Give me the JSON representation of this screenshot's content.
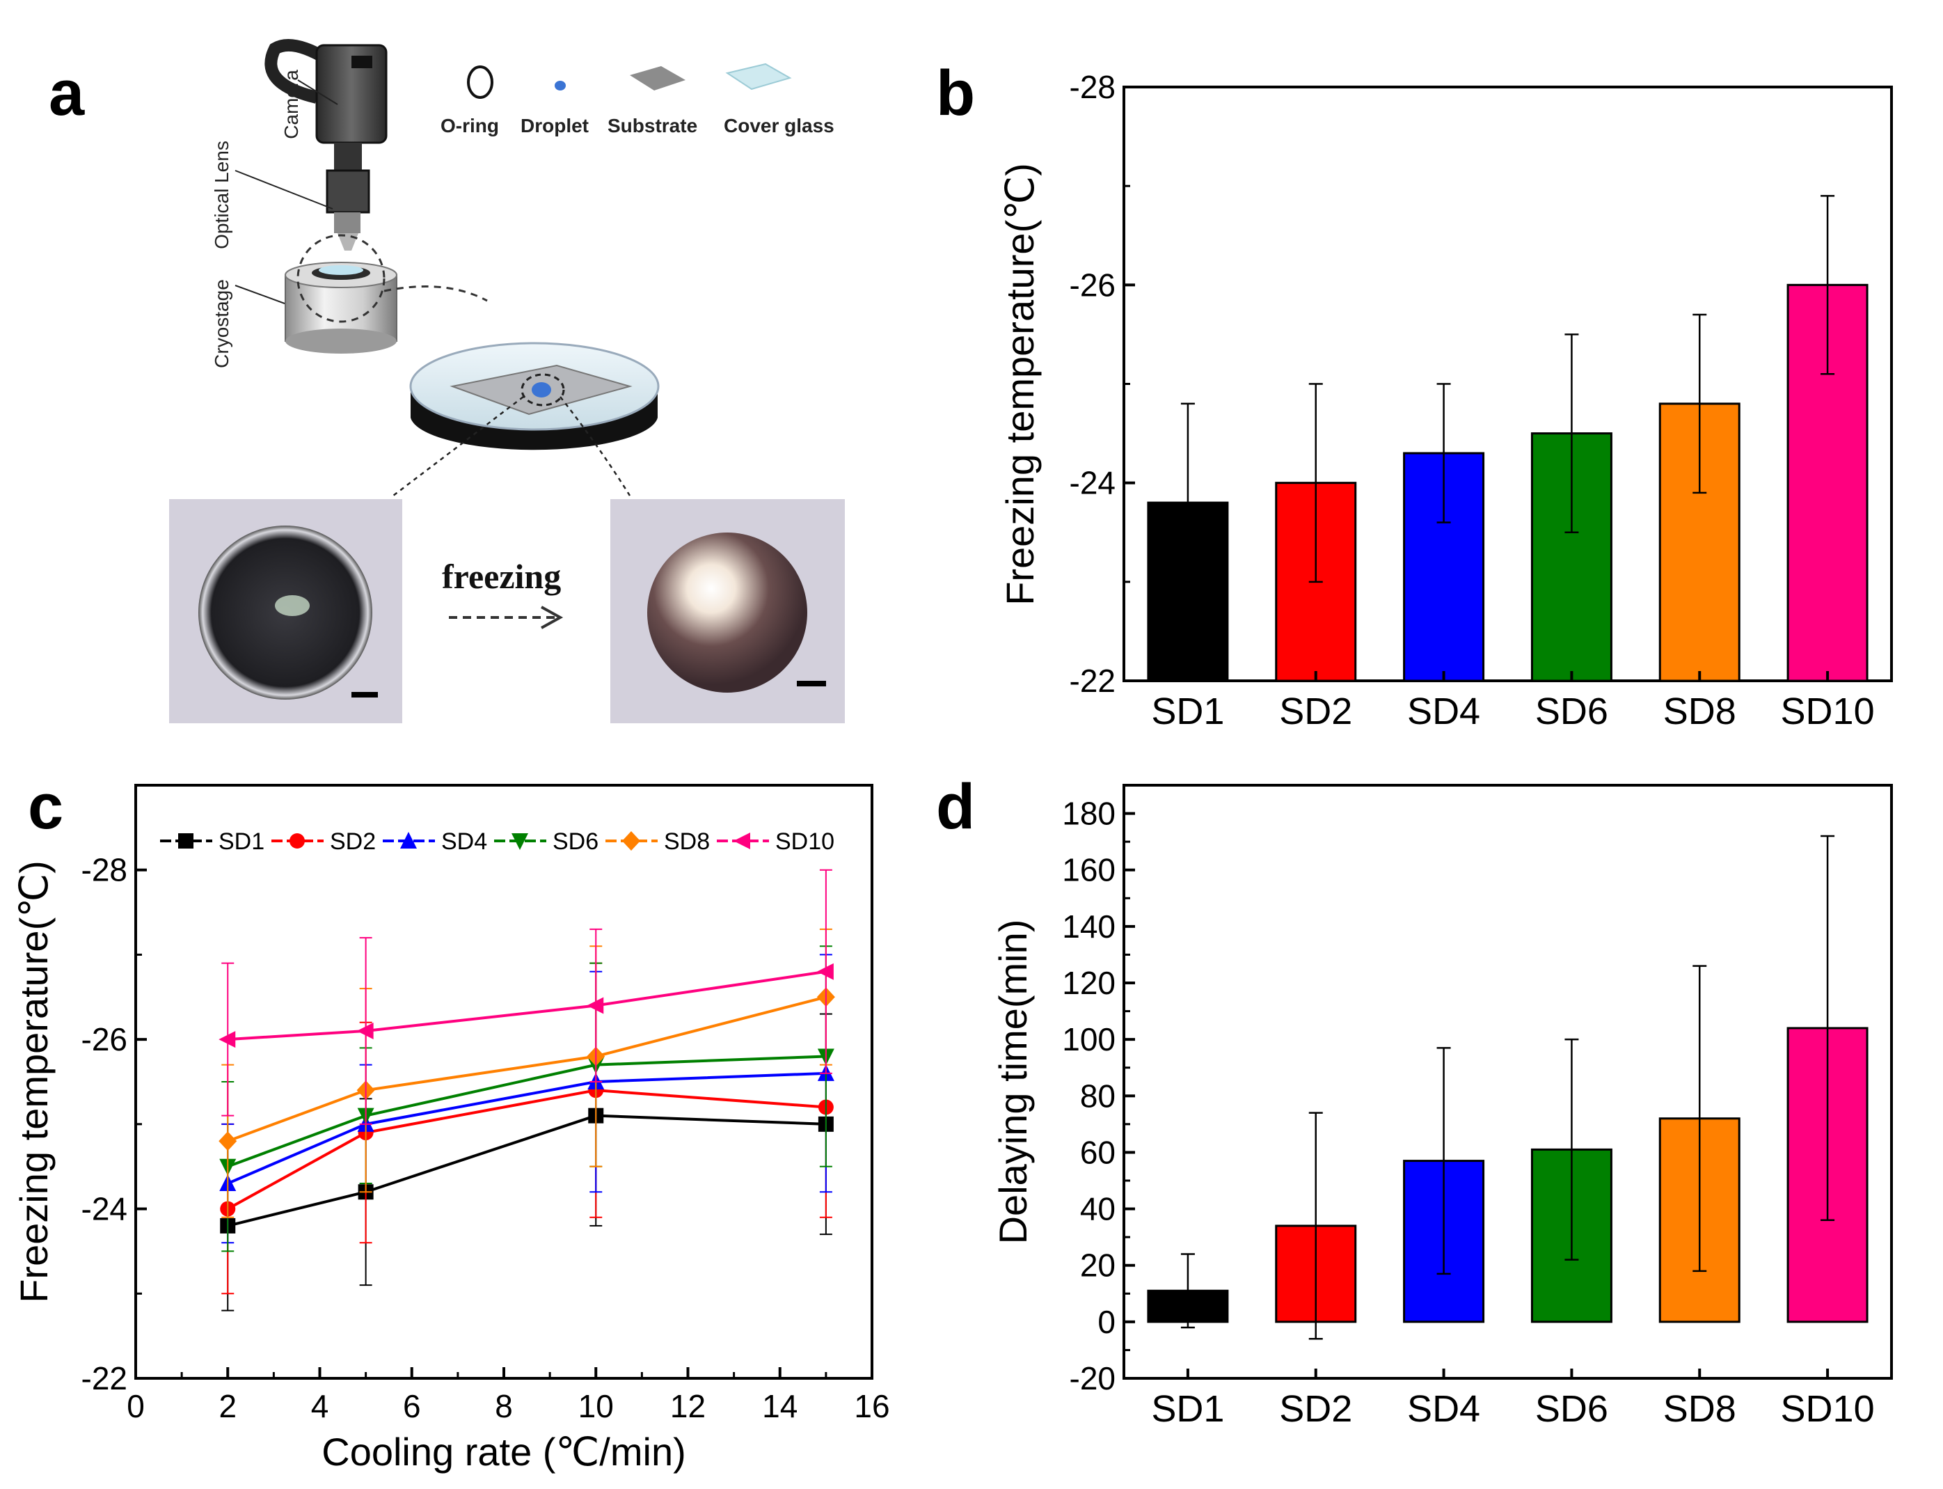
{
  "panel_labels": {
    "a": "a",
    "b": "b",
    "c": "c",
    "d": "d"
  },
  "schematic": {
    "legend": [
      "O-ring",
      "Droplet",
      "Substrate",
      "Cover glass"
    ],
    "labels": {
      "camera": "Camera",
      "lens": "Optical Lens",
      "cryostage": "Cryostage"
    },
    "arrow_label": "freezing"
  },
  "chart_data": [
    {
      "id": "b",
      "type": "bar",
      "title": "",
      "xlabel": "",
      "ylabel": "Freezing temperature(℃)",
      "categories": [
        "SD1",
        "SD2",
        "SD4",
        "SD6",
        "SD8",
        "SD10"
      ],
      "values": [
        -23.8,
        -24.0,
        -24.3,
        -24.5,
        -24.8,
        -26.0
      ],
      "errors": [
        1.0,
        1.0,
        0.7,
        1.0,
        0.9,
        0.9
      ],
      "colors": [
        "#000000",
        "#ff0000",
        "#0000ff",
        "#008000",
        "#ff8000",
        "#ff007f"
      ],
      "ylim": [
        -22,
        -28
      ],
      "yticks": [
        -22,
        -24,
        -26,
        -28
      ],
      "baseline": -22
    },
    {
      "id": "c",
      "type": "line",
      "title": "",
      "xlabel": "Cooling rate (℃/min)",
      "ylabel": "Freezing temperature(℃)",
      "xlim": [
        0,
        16
      ],
      "ylim": [
        -22,
        -29
      ],
      "xticks": [
        0,
        2,
        4,
        6,
        8,
        10,
        12,
        14,
        16
      ],
      "yticks": [
        -22,
        -24,
        -26,
        -28
      ],
      "x": [
        2,
        5,
        10,
        15
      ],
      "legend_position": "top",
      "series": [
        {
          "name": "SD1",
          "color": "#000000",
          "marker": "square",
          "values": [
            -23.8,
            -24.2,
            -25.1,
            -25.0
          ],
          "errors": [
            1.0,
            1.1,
            1.3,
            1.3
          ]
        },
        {
          "name": "SD2",
          "color": "#ff0000",
          "marker": "circle",
          "values": [
            -24.0,
            -24.9,
            -25.4,
            -25.2
          ],
          "errors": [
            1.0,
            1.3,
            1.5,
            1.3
          ]
        },
        {
          "name": "SD4",
          "color": "#0000ff",
          "marker": "triangle-up",
          "values": [
            -24.3,
            -25.0,
            -25.5,
            -25.6
          ],
          "errors": [
            0.7,
            0.7,
            1.3,
            1.4
          ]
        },
        {
          "name": "SD6",
          "color": "#008000",
          "marker": "triangle-down",
          "values": [
            -24.5,
            -25.1,
            -25.7,
            -25.8
          ],
          "errors": [
            1.0,
            0.8,
            1.2,
            1.3
          ]
        },
        {
          "name": "SD8",
          "color": "#ff8000",
          "marker": "diamond",
          "values": [
            -24.8,
            -25.4,
            -25.8,
            -26.5
          ],
          "errors": [
            0.9,
            1.2,
            1.3,
            0.8
          ]
        },
        {
          "name": "SD10",
          "color": "#ff007f",
          "marker": "triangle-left",
          "values": [
            -26.0,
            -26.1,
            -26.4,
            -26.8
          ],
          "errors": [
            0.9,
            1.1,
            0.9,
            1.2
          ]
        }
      ]
    },
    {
      "id": "d",
      "type": "bar",
      "title": "",
      "xlabel": "",
      "ylabel": "Delaying time(min)",
      "categories": [
        "SD1",
        "SD2",
        "SD4",
        "SD6",
        "SD8",
        "SD10"
      ],
      "values": [
        11,
        34,
        57,
        61,
        72,
        104
      ],
      "errors": [
        13,
        40,
        40,
        39,
        54,
        68
      ],
      "colors": [
        "#000000",
        "#ff0000",
        "#0000ff",
        "#008000",
        "#ff8000",
        "#ff007f"
      ],
      "ylim": [
        -20,
        190
      ],
      "yticks": [
        -20,
        0,
        20,
        40,
        60,
        80,
        100,
        120,
        140,
        160,
        180
      ],
      "baseline": 0
    }
  ]
}
